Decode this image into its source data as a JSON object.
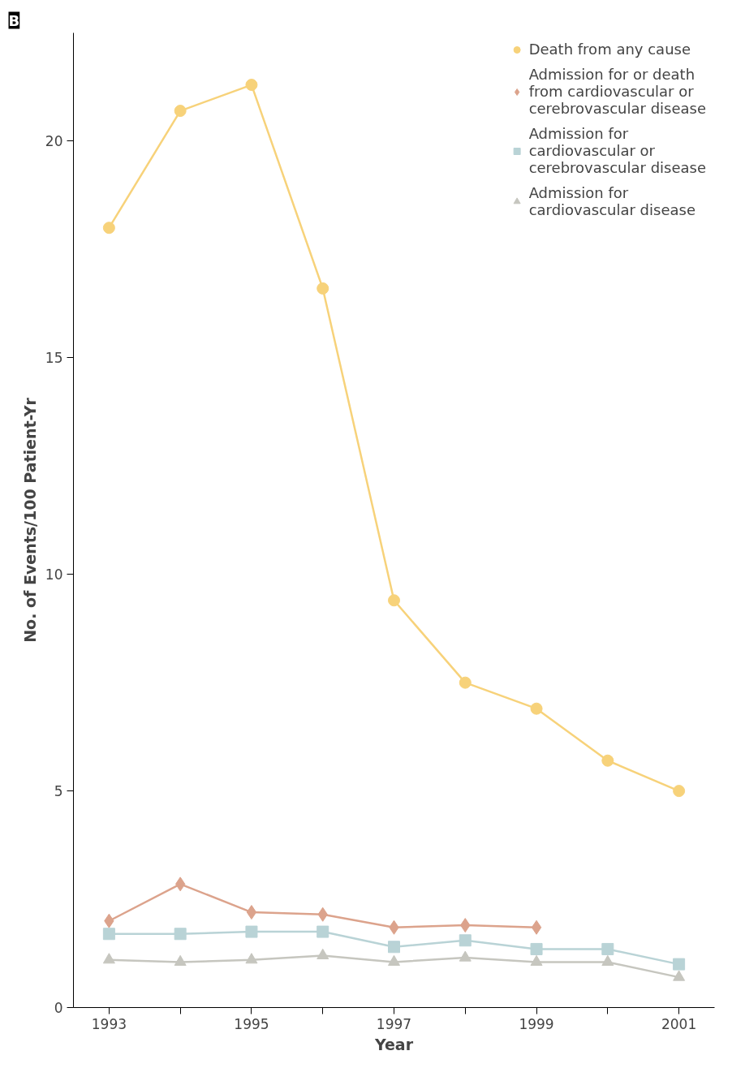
{
  "chart_data": {
    "type": "line",
    "xlabel": "Year",
    "ylabel": "No. of Events/100 Patient-Yr",
    "annotations": [
      "B"
    ],
    "x": [
      1993,
      1994,
      1995,
      1996,
      1997,
      1998,
      1999,
      2000,
      2001
    ],
    "series": [
      {
        "name": "Death from any cause",
        "color": "#f7d27a",
        "marker": "circle",
        "values": [
          18.0,
          20.7,
          21.3,
          16.6,
          9.4,
          7.5,
          6.9,
          5.7,
          5.0
        ]
      },
      {
        "name": "Admission for or death from cardiovascular or cerebrovascular disease",
        "color": "#dca38c",
        "marker": "diamond",
        "values": [
          2.0,
          2.85,
          2.2,
          2.15,
          1.85,
          1.9,
          1.85,
          null,
          null
        ]
      },
      {
        "name": "Admission for cardiovascular or cerebrovascular disease",
        "color": "#b9d3d6",
        "marker": "square",
        "values": [
          1.7,
          1.7,
          1.75,
          1.75,
          1.4,
          1.55,
          1.35,
          1.35,
          1.0
        ]
      },
      {
        "name": "Admission for cardiovascular disease",
        "color": "#c6c6bf",
        "marker": "triangle",
        "values": [
          1.1,
          1.05,
          1.1,
          1.2,
          1.05,
          1.15,
          1.05,
          1.05,
          0.7
        ]
      }
    ],
    "xlim": [
      1992.5,
      2001.5
    ],
    "xticks": [
      1993,
      {
        "value": 1994,
        "label": null
      },
      1995,
      {
        "value": 1996,
        "label": null
      },
      1997,
      {
        "value": 1998,
        "label": null
      },
      1999,
      {
        "value": 2000,
        "label": null
      },
      2001
    ],
    "ylim": [
      0,
      22.5
    ],
    "yticks": [
      0,
      5,
      10,
      15,
      20
    ],
    "grid": false,
    "legend": "top right",
    "line_style": "solid"
  }
}
